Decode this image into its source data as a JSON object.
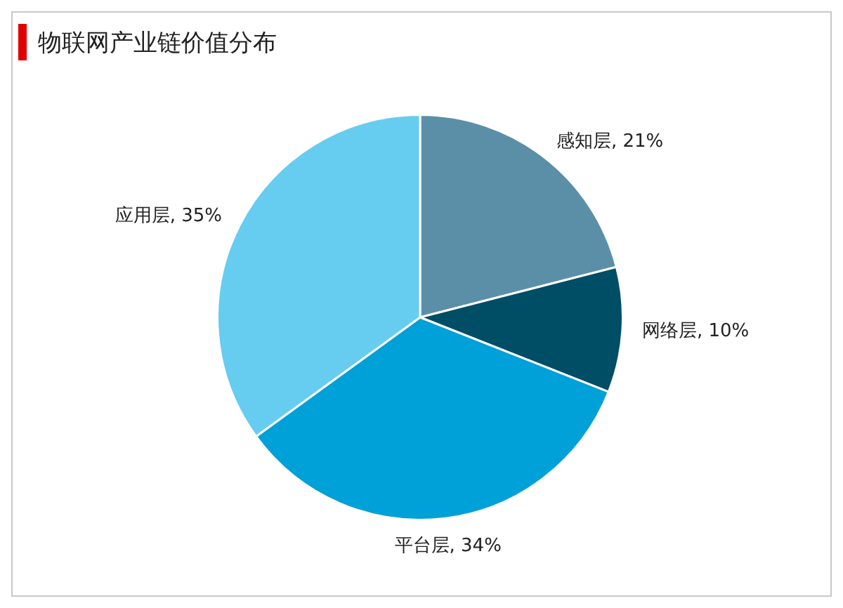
{
  "chart_data": {
    "type": "pie",
    "title": "物联网产业链价值分布",
    "categories": [
      "感知层",
      "网络层",
      "平台层",
      "应用层"
    ],
    "values": [
      21,
      10,
      34,
      35
    ],
    "value_labels": [
      "21%",
      "10%",
      "34%",
      "35%"
    ],
    "colors": [
      "#5b8fa8",
      "#004d66",
      "#00a0d8",
      "#66ccf0"
    ],
    "legend": false
  }
}
